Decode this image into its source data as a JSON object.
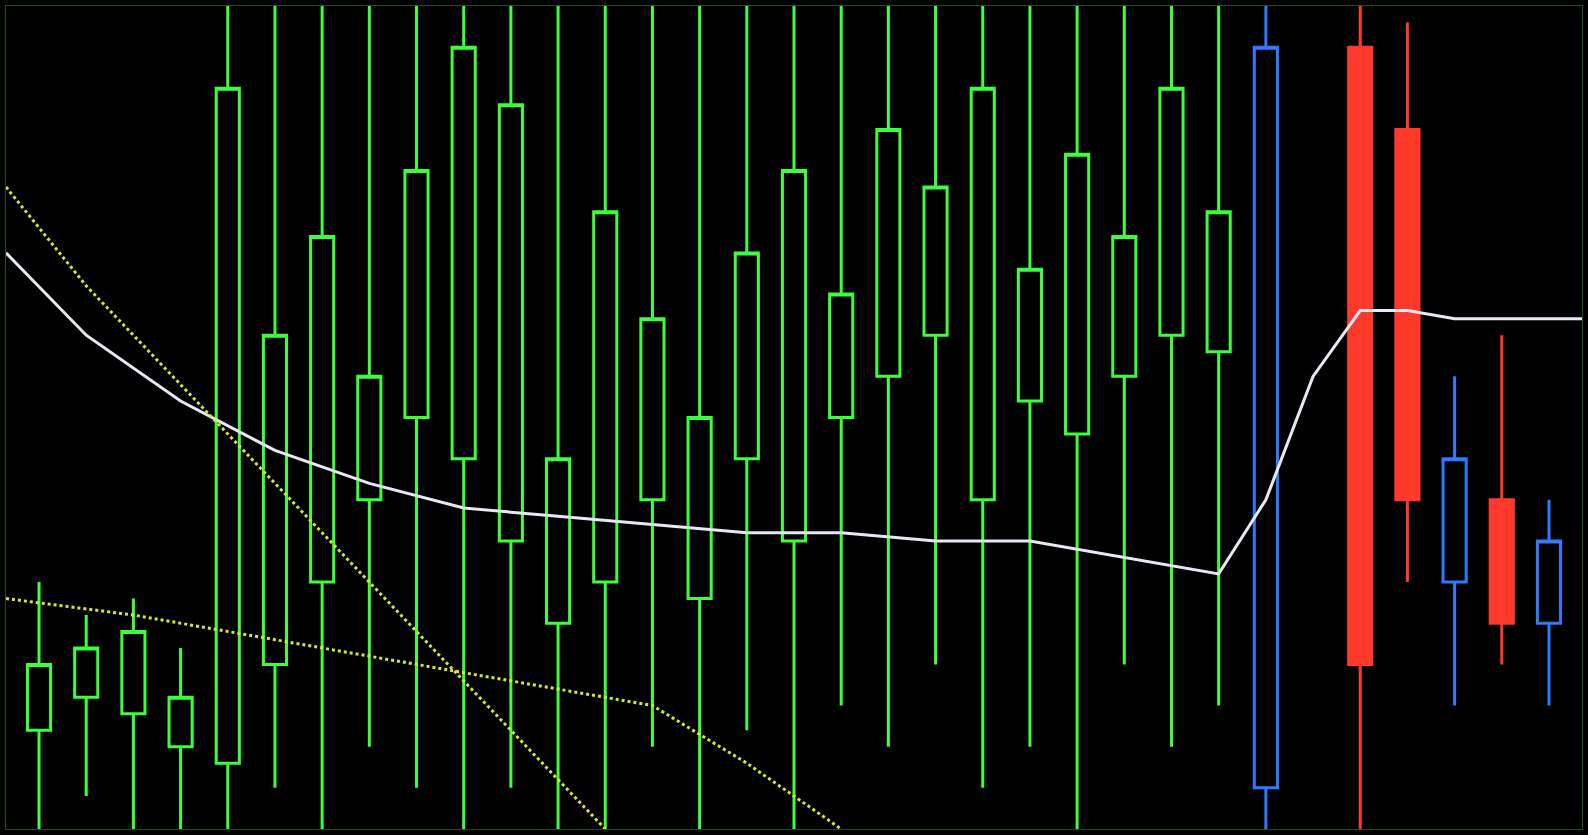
{
  "chart_data": {
    "type": "candlestick",
    "xlim": [
      0.3,
      33.7
    ],
    "ylim": [
      0,
      100
    ],
    "tick_labels": false,
    "grid": false,
    "series": [
      {
        "type": "candlestick",
        "color": "#3cff3c",
        "x": [
          1,
          2,
          3,
          4,
          5,
          6,
          7,
          8,
          9,
          10,
          11,
          12,
          13,
          14,
          15,
          16,
          17,
          18,
          19,
          20,
          21,
          22,
          23,
          24,
          25,
          26
        ],
        "open": [
          12,
          16,
          14,
          10,
          8,
          20,
          30,
          40,
          50,
          45,
          35,
          25,
          30,
          40,
          28,
          45,
          35,
          50,
          55,
          60,
          40,
          52,
          48,
          55,
          60,
          58
        ],
        "high": [
          30,
          26,
          28,
          22,
          100,
          100,
          100,
          100,
          100,
          100,
          100,
          100,
          100,
          100,
          100,
          100,
          100,
          100,
          100,
          100,
          100,
          100,
          100,
          100,
          100,
          100
        ],
        "low": [
          0,
          4,
          0,
          0,
          0,
          5,
          0,
          10,
          5,
          0,
          5,
          0,
          0,
          10,
          0,
          12,
          0,
          15,
          10,
          20,
          5,
          10,
          0,
          20,
          10,
          15
        ],
        "close": [
          20,
          22,
          24,
          16,
          90,
          60,
          72,
          55,
          80,
          95,
          88,
          45,
          75,
          62,
          50,
          70,
          80,
          65,
          85,
          78,
          90,
          68,
          82,
          72,
          90,
          75
        ]
      },
      {
        "type": "candlestick",
        "color": "#2f7bff",
        "x": [
          27,
          31,
          33
        ],
        "open": [
          5,
          30,
          25
        ],
        "high": [
          100,
          55,
          40
        ],
        "low": [
          0,
          15,
          15
        ],
        "close": [
          95,
          45,
          35
        ]
      },
      {
        "type": "candlestick",
        "color": "#ff3a2a",
        "x": [
          29,
          30,
          32
        ],
        "open": [
          95,
          85,
          40
        ],
        "high": [
          100,
          98,
          60
        ],
        "low": [
          0,
          30,
          20
        ],
        "close": [
          20,
          40,
          25
        ]
      },
      {
        "type": "line",
        "color": "#e8e8f4",
        "line_style": "solid",
        "x": [
          0.3,
          2,
          4,
          6,
          8,
          10,
          12,
          14,
          16,
          18,
          20,
          22,
          24,
          26,
          27,
          28,
          29,
          30,
          31,
          32,
          33,
          33.7
        ],
        "values": [
          70,
          60,
          52,
          46,
          42,
          39,
          38,
          37,
          36,
          36,
          35,
          35,
          33,
          31,
          40,
          55,
          63,
          63,
          62,
          62,
          62,
          62
        ]
      },
      {
        "type": "line",
        "color": "#d8e830",
        "line_style": "dotted",
        "x": [
          0.3,
          2,
          4,
          6,
          8,
          10,
          12,
          13
        ],
        "values": [
          78,
          66,
          54,
          42,
          30,
          18,
          6,
          0
        ]
      },
      {
        "type": "line",
        "color": "#d8e830",
        "line_style": "dotted",
        "x": [
          0.3,
          3,
          6,
          9,
          12,
          14,
          16,
          18
        ],
        "values": [
          28,
          26,
          23,
          20,
          17,
          15,
          8,
          0
        ]
      }
    ]
  }
}
